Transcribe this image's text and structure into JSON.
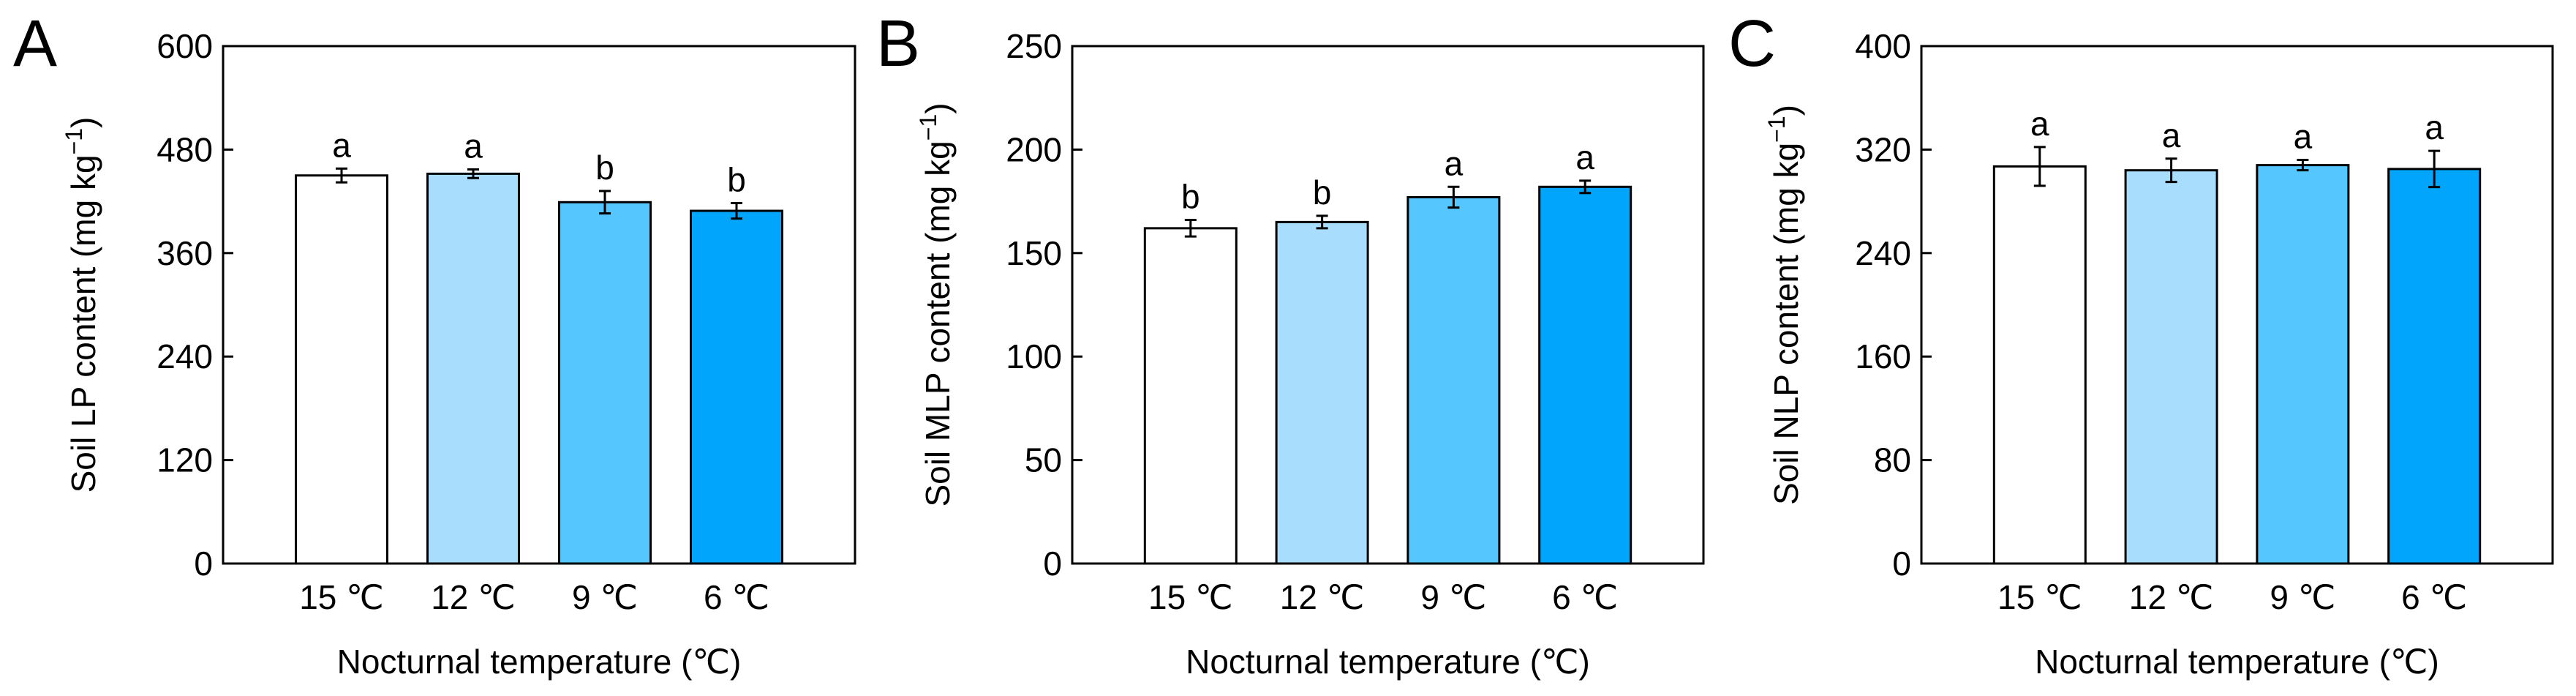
{
  "colors": {
    "bar_fills": [
      "#ffffff",
      "#a8ddfe",
      "#56c6fe",
      "#01a5fc"
    ],
    "stroke": "#000000"
  },
  "chart_data": [
    {
      "type": "bar",
      "panel": "A",
      "categories": [
        "15 ℃",
        "12 ℃",
        "9 ℃",
        "6 ℃"
      ],
      "values": [
        450,
        452,
        419,
        409
      ],
      "errors": [
        8,
        5,
        13,
        9
      ],
      "significance": [
        "a",
        "a",
        "b",
        "b"
      ],
      "xlabel": "Nocturnal temperature (℃)",
      "ylabel_base": "Soil LP content (mg kg",
      "ylabel_sup": "−1",
      "ylabel_close": ")",
      "ylim": [
        0,
        600
      ],
      "yticks": [
        0,
        120,
        240,
        360,
        480,
        600
      ],
      "ytick_labels": [
        "0",
        "120",
        "240",
        "360",
        "480",
        "600"
      ]
    },
    {
      "type": "bar",
      "panel": "B",
      "categories": [
        "15 ℃",
        "12 ℃",
        "9 ℃",
        "6 ℃"
      ],
      "values": [
        162,
        165,
        177,
        182
      ],
      "errors": [
        4,
        3,
        5,
        3
      ],
      "significance": [
        "b",
        "b",
        "a",
        "a"
      ],
      "xlabel": "Nocturnal temperature (℃)",
      "ylabel_base": "Soil MLP content (mg kg",
      "ylabel_sup": "−1",
      "ylabel_close": ")",
      "ylim": [
        0,
        250
      ],
      "yticks": [
        0,
        50,
        100,
        150,
        200,
        250
      ],
      "ytick_labels": [
        "0",
        "50",
        "100",
        "150",
        "200",
        "250"
      ]
    },
    {
      "type": "bar",
      "panel": "C",
      "categories": [
        "15 ℃",
        "12 ℃",
        "9 ℃",
        "6 ℃"
      ],
      "values": [
        307,
        304,
        308,
        305
      ],
      "errors": [
        15,
        9,
        4,
        14
      ],
      "significance": [
        "a",
        "a",
        "a",
        "a"
      ],
      "xlabel": "Nocturnal temperature (℃)",
      "ylabel_base": "Soil NLP content (mg kg",
      "ylabel_sup": "−1",
      "ylabel_close": ")",
      "ylim": [
        0,
        400
      ],
      "yticks": [
        0,
        80,
        160,
        240,
        320,
        400
      ],
      "ytick_labels": [
        "0",
        "80",
        "160",
        "240",
        "320",
        "400"
      ]
    }
  ]
}
